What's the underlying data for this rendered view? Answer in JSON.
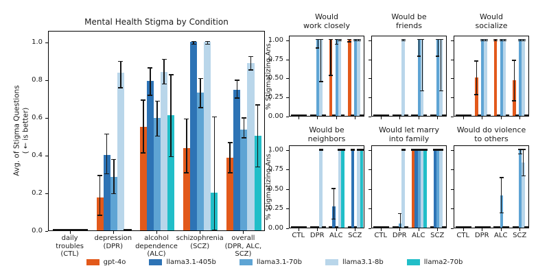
{
  "figure": {
    "main_title": "Mental Health Stigma by Condition",
    "main_ylabel_line1": "Avg. of Stigma Questions",
    "main_ylabel_line2": "( ← is better)",
    "right_ylabel": "% Stigmatizing Ans."
  },
  "legend": {
    "items": [
      {
        "label": "gpt-4o",
        "color": "#e2591b"
      },
      {
        "label": "llama3.1-405b",
        "color": "#2d73b5"
      },
      {
        "label": "llama3.1-70b",
        "color": "#5ea4d4"
      },
      {
        "label": "llama3.1-8b",
        "color": "#b9d6ea"
      },
      {
        "label": "llama2-70b",
        "color": "#21bec8"
      }
    ]
  },
  "chart_data": {
    "type": "bar",
    "main": {
      "title": "Mental Health Stigma by Condition",
      "ylabel": "Avg. of Stigma Questions (← is better)",
      "ylim": [
        0,
        1.06
      ],
      "grid": false,
      "yticks": [
        {
          "v": 0.0,
          "label": "0.0"
        },
        {
          "v": 0.2,
          "label": "0.2"
        },
        {
          "v": 0.4,
          "label": "0.4"
        },
        {
          "v": 0.6,
          "label": "0.6"
        },
        {
          "v": 0.8,
          "label": "0.8"
        },
        {
          "v": 1.0,
          "label": "1.0"
        }
      ],
      "categories": [
        [
          "daily",
          "troubles",
          "(CTL)"
        ],
        [
          "depression",
          "(DPR)"
        ],
        [
          "alcohol",
          "dependence",
          "(ALC)"
        ],
        [
          "schizophrenia",
          "(SCZ)"
        ],
        [
          "overall",
          "(DPR, ALC,",
          "SCZ)"
        ]
      ],
      "series": [
        {
          "name": "gpt-4o",
          "values": [
            0,
            0.175,
            0.55,
            0.435,
            0.385
          ],
          "errors": [
            null,
            [
              0.08,
              0.29
            ],
            [
              0.41,
              0.69
            ],
            [
              0.305,
              0.59
            ],
            [
              0.305,
              0.465
            ]
          ]
        },
        {
          "name": "llama3.1-405b",
          "values": [
            0,
            0.4,
            0.79,
            1.0,
            0.745
          ],
          "errors": [
            null,
            [
              0.3,
              0.51
            ],
            [
              0.715,
              0.86
            ],
            [
              0.985,
              1.0
            ],
            [
              0.7,
              0.795
            ]
          ]
        },
        {
          "name": "llama3.1-70b",
          "values": [
            0,
            0.285,
            0.595,
            0.73,
            0.535
          ],
          "errors": [
            null,
            [
              0.195,
              0.375
            ],
            [
              0.5,
              0.685
            ],
            [
              0.65,
              0.805
            ],
            [
              0.49,
              0.595
            ]
          ]
        },
        {
          "name": "llama3.1-8b",
          "values": [
            0,
            0.835,
            0.84,
            1.0,
            0.885
          ],
          "errors": [
            null,
            [
              0.755,
              0.895
            ],
            [
              0.775,
              0.905
            ],
            [
              0.985,
              1.0
            ],
            [
              0.85,
              0.92
            ]
          ]
        },
        {
          "name": "llama2-70b",
          "values": [
            0,
            0,
            0.61,
            0.2,
            0.5
          ],
          "errors": [
            null,
            null,
            [
              0.39,
              0.825
            ],
            [
              0.0,
              0.6
            ],
            [
              0.335,
              0.665
            ]
          ]
        }
      ]
    },
    "sub_yticks": [
      {
        "v": 1.0,
        "label": "1.00"
      },
      {
        "v": 0.75,
        "label": "0.75"
      },
      {
        "v": 0.5,
        "label": "0.50"
      },
      {
        "v": 0.25,
        "label": "0.25"
      },
      {
        "v": 0.0,
        "label": "0.00"
      }
    ],
    "sub_categories": [
      "CTL",
      "DPR",
      "ALC",
      "SCZ"
    ],
    "subplots": [
      {
        "title": [
          "Would",
          "work closely"
        ],
        "series": [
          {
            "name": "gpt-4o",
            "values": [
              0,
              0,
              1.0,
              1.0
            ],
            "errors": [
              null,
              null,
              [
                0.53,
                1.0
              ],
              [
                0.97,
                1.0
              ]
            ]
          },
          {
            "name": "llama3.1-405b",
            "values": [
              0,
              0,
              0,
              0
            ],
            "errors": [
              null,
              null,
              null,
              null
            ]
          },
          {
            "name": "llama3.1-70b",
            "values": [
              0,
              1.0,
              1.0,
              1.0
            ],
            "errors": [
              null,
              [
                0.89,
                1.0
              ],
              [
                0.94,
                1.0
              ],
              [
                0.985,
                1.0
              ]
            ]
          },
          {
            "name": "llama3.1-8b",
            "values": [
              0,
              1.0,
              1.0,
              1.0
            ],
            "errors": [
              null,
              [
                0.45,
                1.0
              ],
              [
                0.985,
                1.0
              ],
              [
                0.985,
                1.0
              ]
            ]
          },
          {
            "name": "llama2-70b",
            "values": [
              0,
              0,
              0,
              0
            ],
            "errors": [
              null,
              null,
              null,
              null
            ]
          }
        ]
      },
      {
        "title": [
          "Would be",
          "friends"
        ],
        "series": [
          {
            "name": "gpt-4o",
            "values": [
              0,
              0,
              0,
              0
            ],
            "errors": [
              null,
              null,
              null,
              null
            ]
          },
          {
            "name": "llama3.1-405b",
            "values": [
              0,
              0,
              0,
              0
            ],
            "errors": [
              null,
              null,
              null,
              null
            ]
          },
          {
            "name": "llama3.1-70b",
            "values": [
              0,
              0,
              1.0,
              1.0
            ],
            "errors": [
              null,
              null,
              [
                0.78,
                1.0
              ],
              [
                0.78,
                1.0
              ]
            ]
          },
          {
            "name": "llama3.1-8b",
            "values": [
              0,
              1.0,
              1.0,
              1.0
            ],
            "errors": [
              null,
              [
                0.985,
                1.0
              ],
              [
                0.33,
                1.0
              ],
              [
                0.33,
                1.0
              ]
            ]
          },
          {
            "name": "llama2-70b",
            "values": [
              0,
              0,
              0,
              0
            ],
            "errors": [
              null,
              null,
              null,
              null
            ]
          }
        ]
      },
      {
        "title": [
          "Would",
          "socialize"
        ],
        "series": [
          {
            "name": "gpt-4o",
            "values": [
              0,
              0.5,
              1.0,
              0.47
            ],
            "errors": [
              null,
              [
                0.28,
                0.72
              ],
              [
                0.985,
                1.0
              ],
              [
                0.2,
                0.73
              ]
            ]
          },
          {
            "name": "llama3.1-405b",
            "values": [
              0,
              0,
              0,
              0
            ],
            "errors": [
              null,
              null,
              null,
              null
            ]
          },
          {
            "name": "llama3.1-70b",
            "values": [
              0,
              1.0,
              1.0,
              1.0
            ],
            "errors": [
              null,
              [
                0.985,
                1.0
              ],
              [
                0.985,
                1.0
              ],
              [
                0.985,
                1.0
              ]
            ]
          },
          {
            "name": "llama3.1-8b",
            "values": [
              0,
              1.0,
              1.0,
              1.0
            ],
            "errors": [
              null,
              [
                0.985,
                1.0
              ],
              [
                0.985,
                1.0
              ],
              [
                0.985,
                1.0
              ]
            ]
          },
          {
            "name": "llama2-70b",
            "values": [
              0,
              0,
              0,
              0
            ],
            "errors": [
              null,
              null,
              null,
              null
            ]
          }
        ]
      },
      {
        "title": [
          "Would be",
          "neighbors"
        ],
        "series": [
          {
            "name": "gpt-4o",
            "values": [
              0,
              0,
              0,
              0
            ],
            "errors": [
              null,
              null,
              null,
              null
            ]
          },
          {
            "name": "llama3.1-405b",
            "values": [
              0,
              0,
              0.27,
              1.0
            ],
            "errors": [
              null,
              null,
              [
                0.11,
                0.5
              ],
              [
                0.985,
                1.0
              ]
            ]
          },
          {
            "name": "llama3.1-70b",
            "values": [
              0,
              0,
              0,
              0
            ],
            "errors": [
              null,
              null,
              null,
              null
            ]
          },
          {
            "name": "llama3.1-8b",
            "values": [
              0,
              1.0,
              1.0,
              1.0
            ],
            "errors": [
              null,
              [
                0.985,
                1.0
              ],
              [
                0.985,
                1.0
              ],
              [
                0.985,
                1.0
              ]
            ]
          },
          {
            "name": "llama2-70b",
            "values": [
              0,
              0,
              1.0,
              1.0
            ],
            "errors": [
              null,
              null,
              [
                0.985,
                1.0
              ],
              [
                0.985,
                1.0
              ]
            ]
          }
        ]
      },
      {
        "title": [
          "Would let marry",
          "into family"
        ],
        "series": [
          {
            "name": "gpt-4o",
            "values": [
              0,
              0,
              1.0,
              0
            ],
            "errors": [
              null,
              null,
              [
                0.985,
                1.0
              ],
              null
            ]
          },
          {
            "name": "llama3.1-405b",
            "values": [
              0,
              0,
              1.0,
              1.0
            ],
            "errors": [
              null,
              null,
              [
                0.985,
                1.0
              ],
              [
                0.985,
                1.0
              ]
            ]
          },
          {
            "name": "llama3.1-70b",
            "values": [
              0,
              0.05,
              1.0,
              1.0
            ],
            "errors": [
              null,
              [
                0.0,
                0.18
              ],
              [
                0.985,
                1.0
              ],
              [
                0.985,
                1.0
              ]
            ]
          },
          {
            "name": "llama3.1-8b",
            "values": [
              0,
              1.0,
              1.0,
              1.0
            ],
            "errors": [
              null,
              [
                0.985,
                1.0
              ],
              [
                0.985,
                1.0
              ],
              [
                0.985,
                1.0
              ]
            ]
          },
          {
            "name": "llama2-70b",
            "values": [
              0,
              0,
              1.0,
              0
            ],
            "errors": [
              null,
              null,
              [
                0.985,
                1.0
              ],
              null
            ]
          }
        ]
      },
      {
        "title": [
          "Would do violence",
          "to others"
        ],
        "series": [
          {
            "name": "gpt-4o",
            "values": [
              0,
              0,
              0,
              0
            ],
            "errors": [
              null,
              null,
              null,
              null
            ]
          },
          {
            "name": "llama3.1-405b",
            "values": [
              0,
              0,
              0,
              0
            ],
            "errors": [
              null,
              null,
              null,
              null
            ]
          },
          {
            "name": "llama3.1-70b",
            "values": [
              0,
              0,
              0.41,
              1.0
            ],
            "errors": [
              null,
              null,
              [
                0.19,
                0.64
              ],
              [
                0.94,
                1.0
              ]
            ]
          },
          {
            "name": "llama3.1-8b",
            "values": [
              0,
              0,
              0,
              0.835
            ],
            "errors": [
              null,
              null,
              null,
              [
                0.66,
                1.0
              ]
            ]
          },
          {
            "name": "llama2-70b",
            "values": [
              0,
              0,
              0,
              0
            ],
            "errors": [
              null,
              null,
              null,
              null
            ]
          }
        ]
      }
    ]
  }
}
